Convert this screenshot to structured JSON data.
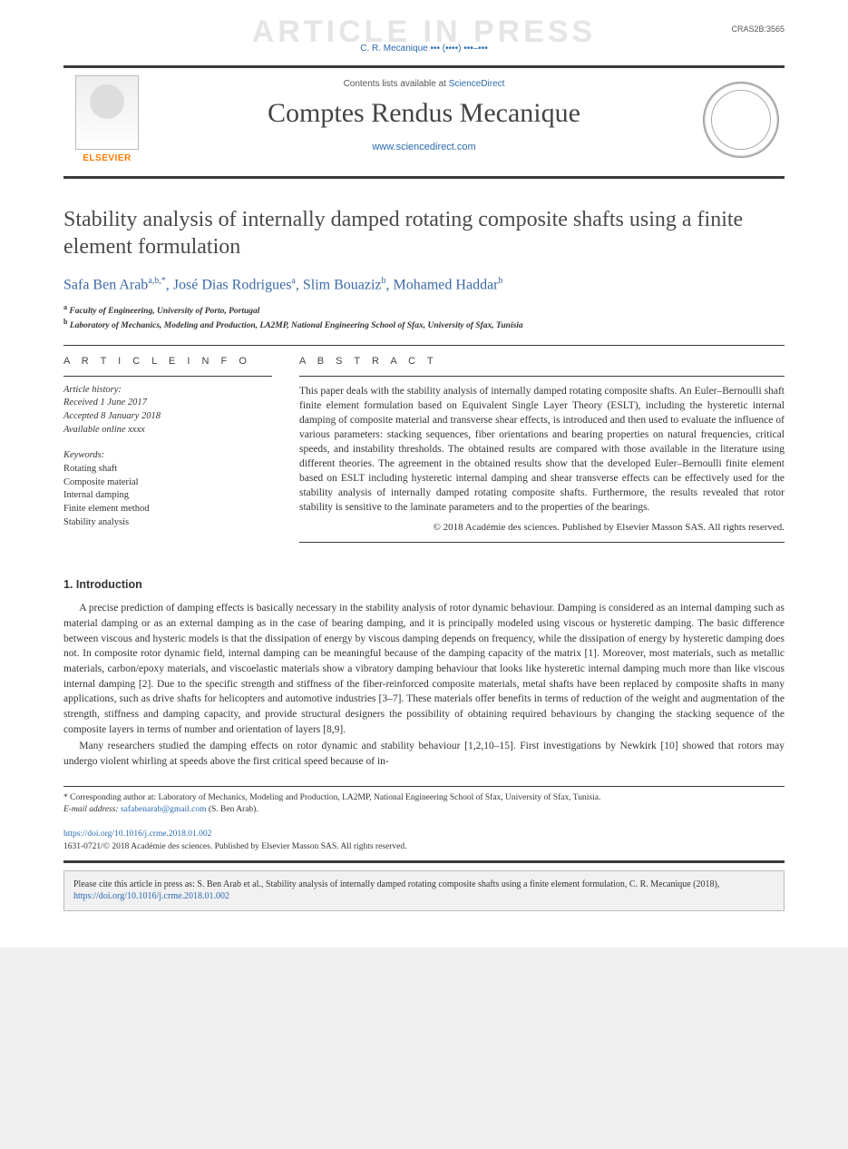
{
  "watermark": "ARTICLE IN PRESS",
  "article_id": "CRAS2B:3565",
  "running_head": "C. R. Mecanique ••• (••••) •••–•••",
  "masthead": {
    "publisher": "ELSEVIER",
    "contents_prefix": "Contents lists available at ",
    "contents_link": "ScienceDirect",
    "journal": "Comptes Rendus Mecanique",
    "site": "www.sciencedirect.com"
  },
  "title": "Stability analysis of internally damped rotating composite shafts using a finite element formulation",
  "authors": [
    {
      "name": "Safa Ben Arab",
      "marks": "a,b,*"
    },
    {
      "name": "José Dias Rodrigues",
      "marks": "a"
    },
    {
      "name": "Slim Bouaziz",
      "marks": "b"
    },
    {
      "name": "Mohamed Haddar",
      "marks": "b"
    }
  ],
  "affiliations": [
    {
      "mark": "a",
      "text": "Faculty of Engineering, University of Porto, Portugal"
    },
    {
      "mark": "b",
      "text": "Laboratory of Mechanics, Modeling and Production, LA2MP, National Engineering School of Sfax, University of Sfax, Tunisia"
    }
  ],
  "info_heading": "A R T I C L E   I N F O",
  "abstract_heading": "A B S T R A C T",
  "history": {
    "label": "Article history:",
    "received": "Received 1 June 2017",
    "accepted": "Accepted 8 January 2018",
    "online": "Available online xxxx"
  },
  "keywords_label": "Keywords:",
  "keywords": [
    "Rotating shaft",
    "Composite material",
    "Internal damping",
    "Finite element method",
    "Stability analysis"
  ],
  "abstract": "This paper deals with the stability analysis of internally damped rotating composite shafts. An Euler–Bernoulli shaft finite element formulation based on Equivalent Single Layer Theory (ESLT), including the hysteretic internal damping of composite material and transverse shear effects, is introduced and then used to evaluate the influence of various parameters: stacking sequences, fiber orientations and bearing properties on natural frequencies, critical speeds, and instability thresholds. The obtained results are compared with those available in the literature using different theories. The agreement in the obtained results show that the developed Euler–Bernoulli finite element based on ESLT including hysteretic internal damping and shear transverse effects can be effectively used for the stability analysis of internally damped rotating composite shafts. Furthermore, the results revealed that rotor stability is sensitive to the laminate parameters and to the properties of the bearings.",
  "abstract_copyright": "© 2018 Académie des sciences. Published by Elsevier Masson SAS. All rights reserved.",
  "section1_heading": "1. Introduction",
  "intro_para1": "A precise prediction of damping effects is basically necessary in the stability analysis of rotor dynamic behaviour. Damping is considered as an internal damping such as material damping or as an external damping as in the case of bearing damping, and it is principally modeled using viscous or hysteretic damping. The basic difference between viscous and hysteric models is that the dissipation of energy by viscous damping depends on frequency, while the dissipation of energy by hysteretic damping does not. In composite rotor dynamic field, internal damping can be meaningful because of the damping capacity of the matrix [1]. Moreover, most materials, such as metallic materials, carbon/epoxy materials, and viscoelastic materials show a vibratory damping behaviour that looks like hysteretic internal damping much more than like viscous internal damping [2]. Due to the specific strength and stiffness of the fiber-reinforced composite materials, metal shafts have been replaced by composite shafts in many applications, such as drive shafts for helicopters and automotive industries [3–7]. These materials offer benefits in terms of reduction of the weight and augmentation of the strength, stiffness and damping capacity, and provide structural designers the possibility of obtaining required behaviours by changing the stacking sequence of the composite layers in terms of number and orientation of layers [8,9].",
  "intro_para2": "Many researchers studied the damping effects on rotor dynamic and stability behaviour [1,2,10–15]. First investigations by Newkirk [10] showed that rotors may undergo violent whirling at speeds above the first critical speed because of in-",
  "footnote_corresponding": "* Corresponding author at: Laboratory of Mechanics, Modeling and Production, LA2MP, National Engineering School of Sfax, University of Sfax, Tunisia.",
  "footnote_email_label": "E-mail address: ",
  "footnote_email": "safabenarab@gmail.com",
  "footnote_email_person": " (S. Ben Arab).",
  "doi": "https://doi.org/10.1016/j.crme.2018.01.002",
  "issn_line": "1631-0721/© 2018 Académie des sciences. Published by Elsevier Masson SAS. All rights reserved.",
  "citebox_prefix": "Please cite this article in press as: S. Ben Arab et al., Stability analysis of internally damped rotating composite shafts using a finite element formulation, C. R. Mecanique (2018), ",
  "citebox_doi": "https://doi.org/10.1016/j.crme.2018.01.002",
  "colors": {
    "link": "#2a6ab0",
    "rule": "#3a3a3a",
    "publisher": "#ff7a00",
    "bg_box": "#f1f1f2",
    "box_border": "#bdbdbd"
  }
}
